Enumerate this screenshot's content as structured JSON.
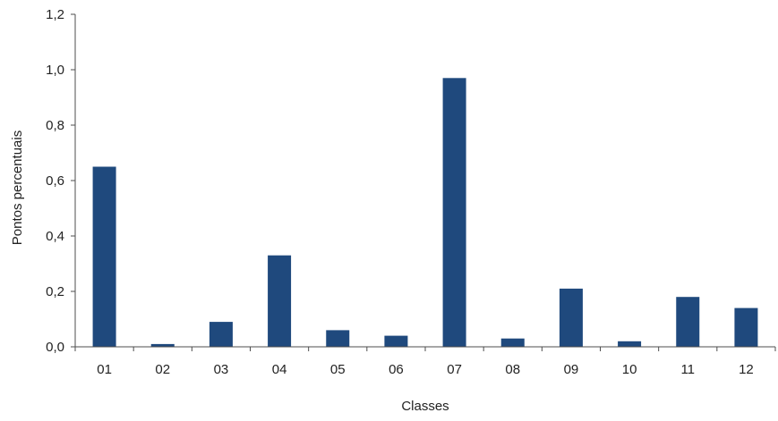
{
  "chart_data": {
    "type": "bar",
    "title": "",
    "xlabel": "Classes",
    "ylabel": "Pontos percentuais",
    "categories": [
      "01",
      "02",
      "03",
      "04",
      "05",
      "06",
      "07",
      "08",
      "09",
      "10",
      "11",
      "12"
    ],
    "values": [
      0.65,
      0.01,
      0.09,
      0.33,
      0.06,
      0.04,
      0.97,
      0.03,
      0.21,
      0.02,
      0.18,
      0.14
    ],
    "ylim": [
      0,
      1.2
    ],
    "yticks": [
      0.0,
      0.2,
      0.4,
      0.6,
      0.8,
      1.0,
      1.2
    ],
    "ytick_labels": [
      "0,0",
      "0,2",
      "0,4",
      "0,6",
      "0,8",
      "1,0",
      "1,2"
    ],
    "grid": false,
    "legend": "none",
    "colors": {
      "bar": "#1f497d",
      "axis": "#4d4d4d"
    }
  }
}
